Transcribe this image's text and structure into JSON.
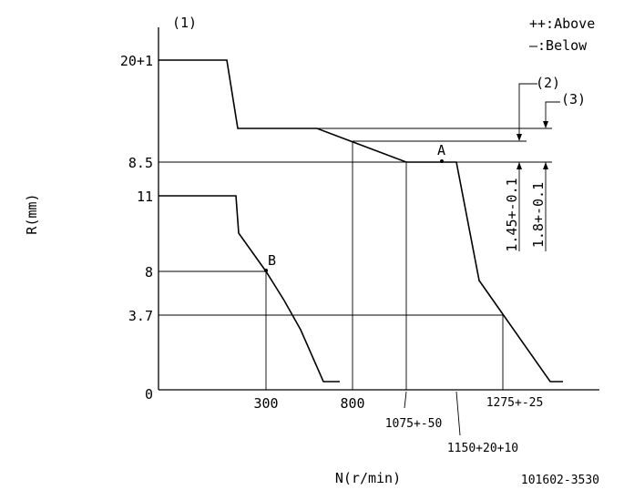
{
  "header": {
    "ref_label": "(1)",
    "legend_above": "++:Above",
    "legend_below": "—:Below"
  },
  "axes": {
    "y_label": "R(mm)",
    "x_label": "N(r/min)",
    "y_ticks": [
      "20+1",
      "8.5",
      "11",
      "8",
      "3.7",
      "0"
    ],
    "x_ticks": [
      "300",
      "800",
      "1075+-50",
      "1275+-25",
      "1150+20+10"
    ]
  },
  "annotations": {
    "point_a": "A",
    "point_b": "B",
    "ref_2": "(2)",
    "ref_3": "(3)",
    "dim_2": "1.45+-0.1",
    "dim_3": "1.8+-0.1"
  },
  "footer": {
    "part_number": "101602-3530"
  }
}
